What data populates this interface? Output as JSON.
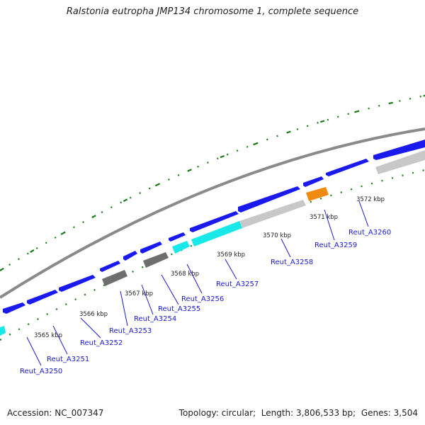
{
  "title": "Ralstonia eutropha JMP134 chromosome 1, complete sequence",
  "footer": {
    "accession_label": "Accession:",
    "accession": "NC_007347",
    "topology_label": "Topology:",
    "topology": "circular",
    "length_label": "Length:",
    "length": "3,806,533 bp",
    "genes_label": "Genes:",
    "genes": "3,504"
  },
  "colors": {
    "backbone": "#8a8a8a",
    "blue_gene": "#1a1aee",
    "cyan_gene": "#19e8e8",
    "gray_gene": "#6e6e6e",
    "light_gray_gene": "#c8c8c8",
    "orange_gene": "#f08a10",
    "tick": "#1a7a1a",
    "label": "#1a1acc"
  },
  "diagram": {
    "kbp_labels": [
      "3565 kbp",
      "3566 kbp",
      "3567 kbp",
      "3568 kbp",
      "3569 kbp",
      "3570 kbp",
      "3571 kbp",
      "3572 kbp"
    ],
    "gene_labels": [
      "Reut_A3250",
      "Reut_A3251",
      "Reut_A3252",
      "Reut_A3253",
      "Reut_A3254",
      "Reut_A3255",
      "Reut_A3256",
      "Reut_A3257",
      "Reut_A3258",
      "Reut_A3259",
      "Reut_A3260"
    ]
  }
}
